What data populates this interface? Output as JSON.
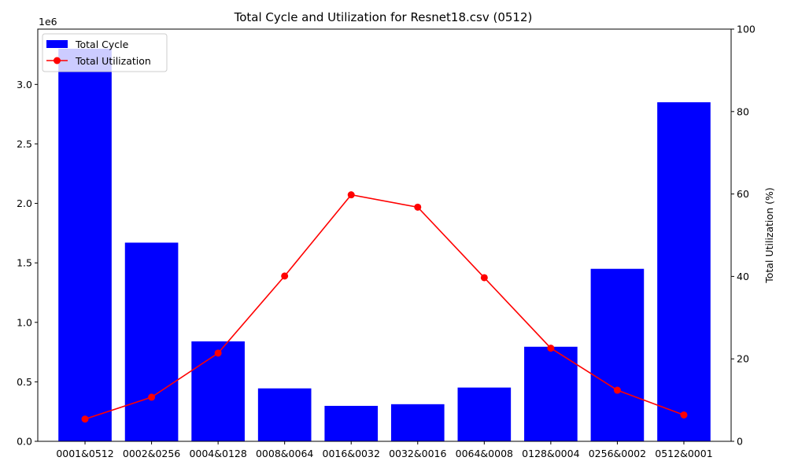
{
  "chart_data": {
    "type": "bar",
    "title": "Total Cycle and Utilization for Resnet18.csv (0512)",
    "categories": [
      "0001&0512",
      "0002&0256",
      "0004&0128",
      "0008&0064",
      "0016&0032",
      "0032&0016",
      "0064&0008",
      "0128&0004",
      "0256&0002",
      "0512&0001"
    ],
    "series": [
      {
        "name": "Total Cycle",
        "type": "bar",
        "axis": "left",
        "color": "#0000ff",
        "values": [
          3300000,
          1670000,
          840000,
          445000,
          298000,
          312000,
          452000,
          795000,
          1450000,
          2850000
        ]
      },
      {
        "name": "Total Utilization",
        "type": "line",
        "axis": "right",
        "color": "#ff0000",
        "marker": "circle",
        "values": [
          5.4,
          10.7,
          21.4,
          40.1,
          59.8,
          56.8,
          39.7,
          22.6,
          12.4,
          6.4
        ]
      }
    ],
    "y_left": {
      "label": "",
      "offset_text": "1e6",
      "ylim": [
        0,
        3.465
      ],
      "ticks": [
        0.0,
        0.5,
        1.0,
        1.5,
        2.0,
        2.5,
        3.0
      ],
      "tick_labels": [
        "0.0",
        "0.5",
        "1.0",
        "1.5",
        "2.0",
        "2.5",
        "3.0"
      ]
    },
    "y_right": {
      "label": "Total Utilization (%)",
      "ylim": [
        0,
        100
      ],
      "ticks": [
        0,
        20,
        40,
        60,
        80,
        100
      ],
      "tick_labels": [
        "0",
        "20",
        "40",
        "60",
        "80",
        "100"
      ]
    },
    "legend": {
      "placement": "upper-left",
      "entries": [
        "Total Cycle",
        "Total Utilization"
      ]
    },
    "grid": false
  }
}
